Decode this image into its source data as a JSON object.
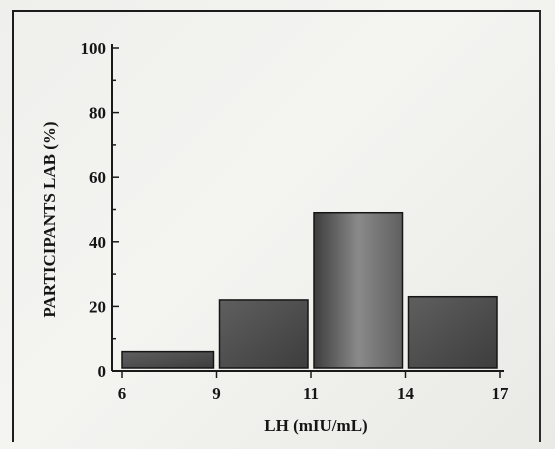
{
  "chart_data": {
    "type": "bar",
    "title": "",
    "xlabel": "LH (mIU/mL)",
    "ylabel": "PARTICIPANTS LAB (%)",
    "ylim": [
      0,
      100
    ],
    "yticks": [
      "0",
      "20",
      "40",
      "60",
      "80",
      "100"
    ],
    "x_edges": [
      6,
      9,
      11,
      14,
      17
    ],
    "xtick_labels": [
      "6",
      "9",
      "11",
      "14",
      "17"
    ],
    "bins": [
      {
        "from": 6,
        "to": 9,
        "value": 6
      },
      {
        "from": 9,
        "to": 11,
        "value": 22
      },
      {
        "from": 11,
        "to": 14,
        "value": 49
      },
      {
        "from": 14,
        "to": 17,
        "value": 23
      }
    ],
    "grid": false,
    "legend": "none"
  },
  "colors": {
    "bar_dark": "#3d3d3d",
    "bar_mid": "#5f5f5f",
    "bar_light": "#8a8a8a",
    "axis": "#1a1a1a"
  }
}
